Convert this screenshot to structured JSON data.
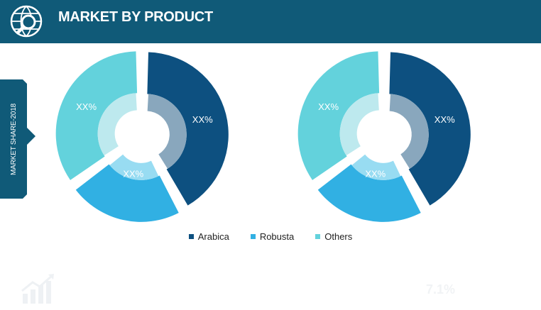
{
  "header": {
    "title": "MARKET BY PRODUCT",
    "icon": "globe-search-icon"
  },
  "side_tab": {
    "label": "MARKET SHARE-2018",
    "color": "#105a78"
  },
  "colors": {
    "header": "#105a78",
    "arabica": "#0d5080",
    "robusta": "#31b0e3",
    "others": "#63d2dc",
    "arabica_inner": "#89a7bd",
    "robusta_inner": "#98dcf2",
    "others_inner": "#bde9ee"
  },
  "chart_data": [
    {
      "type": "pie",
      "variant": "donut",
      "categories": [
        "Arabica",
        "Robusta",
        "Others"
      ],
      "values": [
        42,
        23,
        35
      ],
      "labels": [
        "XX%",
        "XX%",
        "XX%"
      ]
    },
    {
      "type": "pie",
      "variant": "donut",
      "categories": [
        "Arabica",
        "Robusta",
        "Others"
      ],
      "values": [
        42,
        23,
        35
      ],
      "labels": [
        "XX%",
        "XX%",
        "XX%"
      ]
    }
  ],
  "legend": {
    "items": [
      {
        "label": "Arabica",
        "color": "#0d5080"
      },
      {
        "label": "Robusta",
        "color": "#31b0e3"
      },
      {
        "label": "Others",
        "color": "#63d2dc"
      }
    ]
  },
  "footer": {
    "logo_icon": "growth-chart-icon",
    "watermark": "7.1%"
  }
}
